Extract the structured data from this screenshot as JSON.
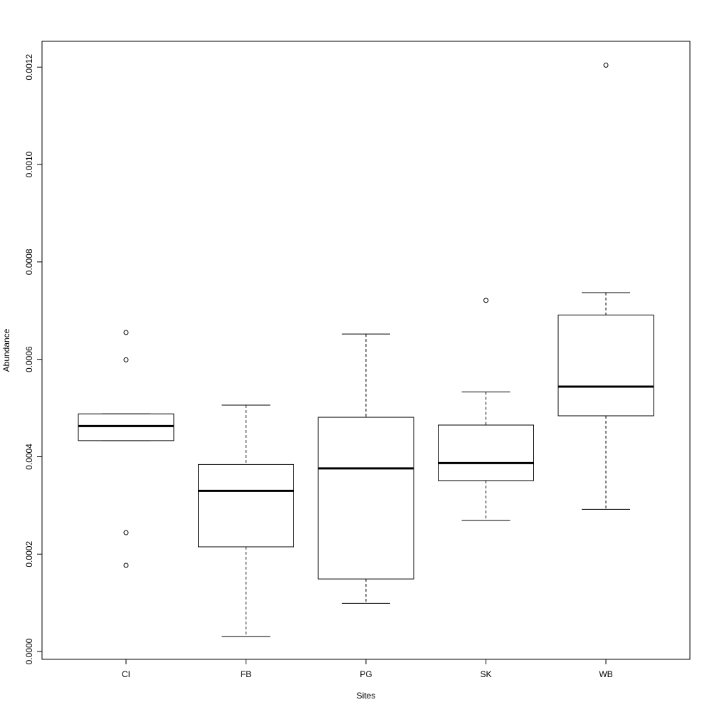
{
  "chart_data": {
    "type": "box",
    "x_label": "Sites",
    "y_label": "Abundance",
    "categories": [
      "CI",
      "FB",
      "PG",
      "SK",
      "WB"
    ],
    "boxes": [
      {
        "low": 0.000433,
        "q1": 0.000433,
        "median": 0.000463,
        "q3": 0.000488,
        "high": 0.000488,
        "outliers": [
          0.000655,
          0.000599,
          0.000244,
          0.000177
        ]
      },
      {
        "low": 3.1e-05,
        "q1": 0.000215,
        "median": 0.00033,
        "q3": 0.000384,
        "high": 0.000506,
        "outliers": []
      },
      {
        "low": 9.9e-05,
        "q1": 0.000149,
        "median": 0.000376,
        "q3": 0.000481,
        "high": 0.000652,
        "outliers": []
      },
      {
        "low": 0.000269,
        "q1": 0.000351,
        "median": 0.000387,
        "q3": 0.000465,
        "high": 0.000533,
        "outliers": [
          0.000721
        ]
      },
      {
        "low": 0.000292,
        "q1": 0.000484,
        "median": 0.000544,
        "q3": 0.000691,
        "high": 0.000737,
        "outliers": [
          0.001204
        ]
      }
    ],
    "color": "#ffffff",
    "ylim": [
      -1.6e-05,
      0.001253
    ],
    "yticks": [
      {
        "value": 0,
        "label": "0.0000"
      },
      0.0002,
      0.0004,
      0.0006,
      0.0008,
      {
        "value": 0.001,
        "label": "0.0010"
      },
      0.0012
    ]
  }
}
